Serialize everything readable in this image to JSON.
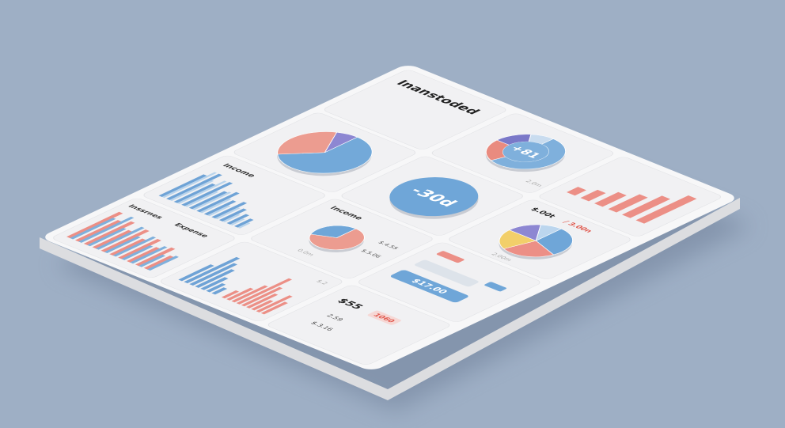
{
  "title": "Inanstoded",
  "kpi_donut": {
    "label": "+81",
    "note": "2.0m",
    "values": [
      55,
      20,
      15,
      10
    ],
    "colors": [
      "#7fb0dc",
      "#e98b7f",
      "#7a78c8",
      "#c9dcef"
    ]
  },
  "top_bars": {
    "values": [
      20,
      30,
      42,
      55,
      70,
      92
    ],
    "color": "#ec8f86"
  },
  "main_pie": {
    "values": [
      62,
      30,
      8
    ],
    "colors": [
      "#73a9d9",
      "#ec9c90",
      "#8d87d2"
    ]
  },
  "status_donut": {
    "label": "-30d",
    "color": "#6fa6d8"
  },
  "side_pie": {
    "label": "$.00t",
    "sublabel": "/ 3.00n",
    "note": "2.00m",
    "values": [
      30,
      25,
      20,
      15,
      10
    ],
    "colors": [
      "#6fa6d8",
      "#ec8f86",
      "#f2cf6a",
      "#8d87d2",
      "#bcd6ee"
    ]
  },
  "income_bars": {
    "title": "Income",
    "values": [
      70,
      82,
      60,
      75,
      55,
      62,
      45,
      50,
      38,
      30,
      25
    ],
    "values2": [
      50,
      40,
      45,
      30,
      35,
      28,
      20,
      22,
      15,
      12,
      10
    ],
    "color": "#6fa3d6",
    "color2": "#b9d4ec"
  },
  "income_pie": {
    "title": "Income",
    "values": [
      68,
      32
    ],
    "colors": [
      "#ec9c90",
      "#6fa6d8"
    ],
    "labels": [
      "$.4.55",
      "$.5.06"
    ],
    "note": "0.0m"
  },
  "controls": {
    "button": "$17.00",
    "color": "#6fa6d8"
  },
  "summary": {
    "amount": "$55",
    "badge": "1060",
    "rows": [
      "2.59",
      "$.3.16"
    ]
  },
  "inc_exp": {
    "titles": [
      "Inssrnes",
      "Expense"
    ],
    "values": [
      80,
      65,
      72,
      55,
      68,
      50,
      60,
      45,
      55,
      40
    ],
    "values2": [
      45,
      55,
      38,
      48,
      35,
      42,
      30,
      36,
      25,
      30
    ],
    "color": "#ec8f86",
    "color2": "#7fb0dc"
  },
  "bottom_bars": {
    "values": [
      40,
      65,
      55,
      45,
      30,
      20,
      15
    ],
    "values2": [
      15,
      25,
      35,
      55,
      40,
      30,
      20,
      35,
      25
    ],
    "color": "#6fa3d6",
    "color2": "#ec8f86",
    "note": "$.2"
  }
}
